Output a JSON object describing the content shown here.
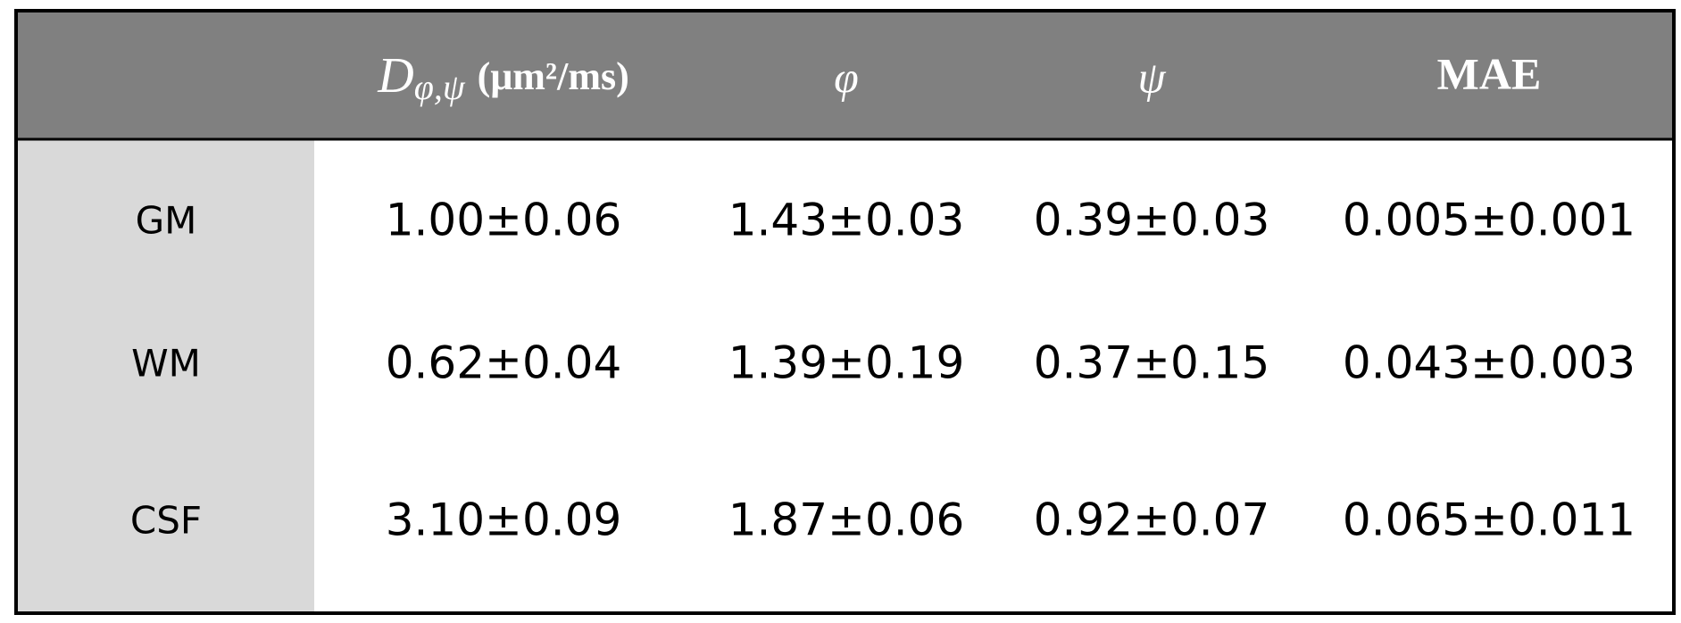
{
  "table": {
    "header": [
      {
        "symbol": "D",
        "subscript": "φ,ψ",
        "unit": "(μm²/ms)"
      },
      "φ",
      "ψ",
      "MAE"
    ],
    "rows": [
      [
        "GM",
        "1.00±0.06",
        "1.43±0.03",
        "0.39±0.03",
        "0.005±0.001"
      ],
      [
        "WM",
        "0.62±0.04",
        "1.39±0.19",
        "0.37±0.15",
        "0.043±0.003"
      ],
      [
        "CSF",
        "3.10±0.09",
        "1.87±0.06",
        "0.92±0.07",
        "0.065±0.011"
      ]
    ]
  }
}
